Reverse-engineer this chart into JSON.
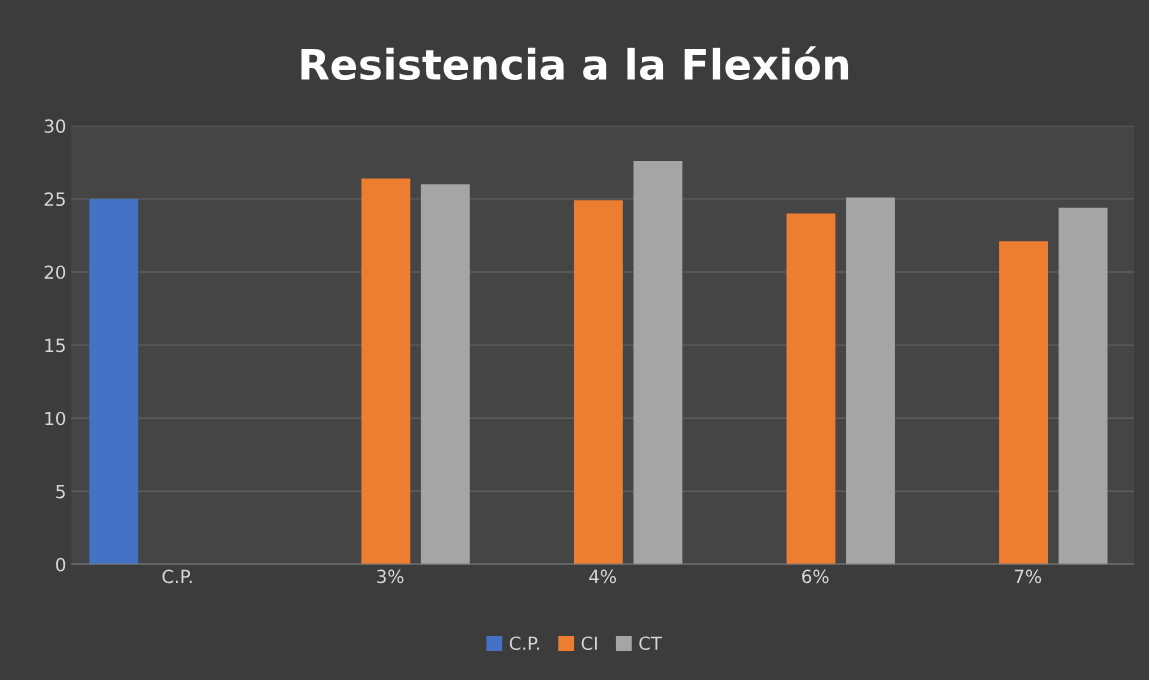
{
  "chart_data": {
    "type": "bar",
    "title": "Resistencia a la Flexión",
    "categories": [
      "C.P.",
      "3%",
      "4%",
      "6%",
      "7%"
    ],
    "series": [
      {
        "name": "C.P.",
        "color": "#4472c4",
        "values": [
          25.0,
          null,
          null,
          null,
          null
        ]
      },
      {
        "name": "CI",
        "color": "#ed7d31",
        "values": [
          null,
          26.4,
          24.9,
          24.0,
          22.1
        ]
      },
      {
        "name": "CT",
        "color": "#a5a5a5",
        "values": [
          null,
          26.0,
          27.6,
          25.1,
          24.4
        ]
      }
    ],
    "ylim": [
      0,
      30
    ],
    "yticks": [
      0,
      5,
      10,
      15,
      20,
      25,
      30
    ],
    "grid": "y",
    "legend": "bottom"
  }
}
